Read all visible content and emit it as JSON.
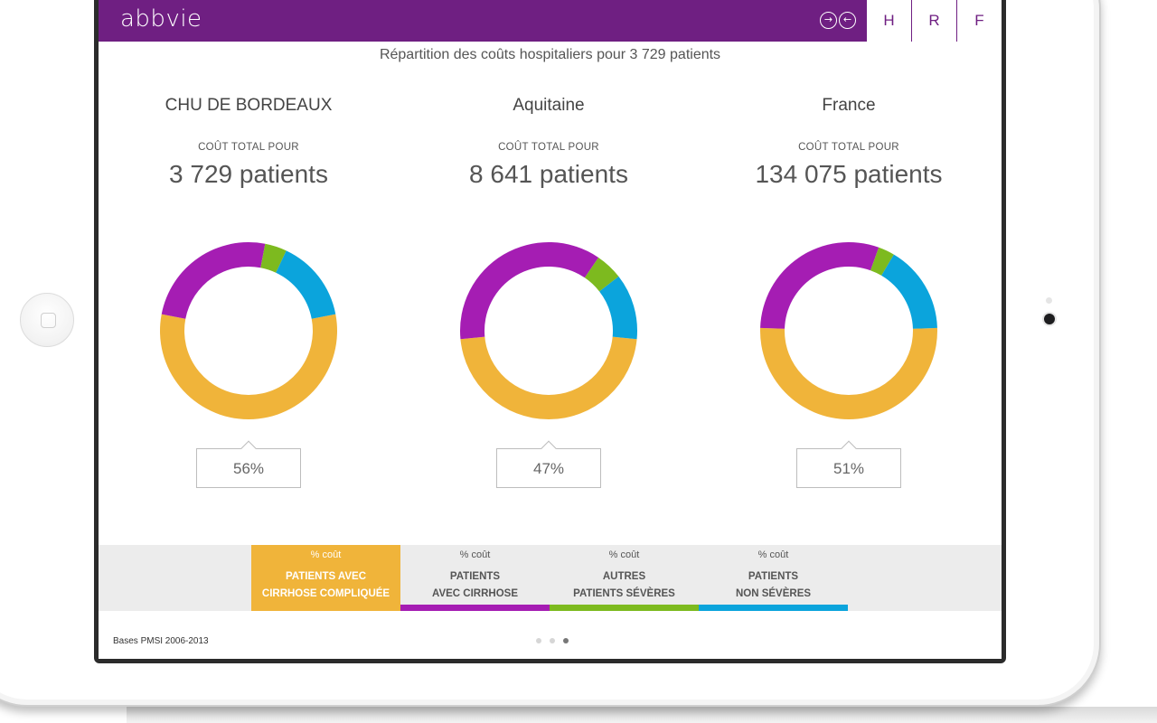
{
  "header": {
    "logo": "abbvie",
    "nav_forward_icon": "arrow-right-circle-icon",
    "nav_back_icon": "arrow-left-circle-icon",
    "tabs": [
      {
        "label": "H"
      },
      {
        "label": "R"
      },
      {
        "label": "F"
      }
    ],
    "brand_color": "#6f1f82"
  },
  "subtitle": "Répartition des coûts hospitaliers pour 3 729 patients",
  "panels": [
    {
      "title": "CHU DE BORDEAUX",
      "caption": "COÛT TOTAL POUR",
      "patients": "3 729 patients",
      "callout": "56%"
    },
    {
      "title": "Aquitaine",
      "caption": "COÛT TOTAL POUR",
      "patients": "8 641 patients",
      "callout": "47%"
    },
    {
      "title": "France",
      "caption": "COÛT TOTAL POUR",
      "patients": "134 075 patients",
      "callout": "51%"
    }
  ],
  "chart_data": [
    {
      "type": "pie",
      "categories": [
        "PATIENTS AVEC CIRRHOSE COMPLIQUÉE",
        "PATIENTS AVEC CIRRHOSE",
        "AUTRES PATIENTS SÉVÈRES",
        "PATIENTS NON SÉVÈRES"
      ],
      "values": [
        56,
        25,
        4,
        15
      ],
      "colors": [
        "#f0b43a",
        "#a51db3",
        "#7dba1f",
        "#0ba4dc"
      ]
    },
    {
      "type": "pie",
      "categories": [
        "PATIENTS AVEC CIRRHOSE COMPLIQUÉE",
        "PATIENTS AVEC CIRRHOSE",
        "AUTRES PATIENTS SÉVÈRES",
        "PATIENTS NON SÉVÈRES"
      ],
      "values": [
        47,
        36,
        5,
        12
      ],
      "colors": [
        "#f0b43a",
        "#a51db3",
        "#7dba1f",
        "#0ba4dc"
      ]
    },
    {
      "type": "pie",
      "categories": [
        "PATIENTS AVEC CIRRHOSE COMPLIQUÉE",
        "PATIENTS AVEC CIRRHOSE",
        "AUTRES PATIENTS SÉVÈRES",
        "PATIENTS NON SÉVÈRES"
      ],
      "values": [
        51,
        30,
        3,
        16
      ],
      "colors": [
        "#f0b43a",
        "#a51db3",
        "#7dba1f",
        "#0ba4dc"
      ]
    }
  ],
  "legend": [
    {
      "pct": "% coût",
      "line1": "PATIENTS AVEC",
      "line2": "CIRRHOSE COMPLIQUÉE",
      "color": "#f0b43a",
      "active": true
    },
    {
      "pct": "% coût",
      "line1": "PATIENTS",
      "line2": "AVEC CIRRHOSE",
      "color": "#a51db3",
      "active": false
    },
    {
      "pct": "% coût",
      "line1": "AUTRES",
      "line2": "PATIENTS SÉVÈRES",
      "color": "#7dba1f",
      "active": false
    },
    {
      "pct": "% coût",
      "line1": "PATIENTS",
      "line2": "NON SÉVÈRES",
      "color": "#0ba4dc",
      "active": false
    }
  ],
  "footer": {
    "source": "Bases PMSI 2006-2013",
    "page_current": 3,
    "page_total": 3
  }
}
